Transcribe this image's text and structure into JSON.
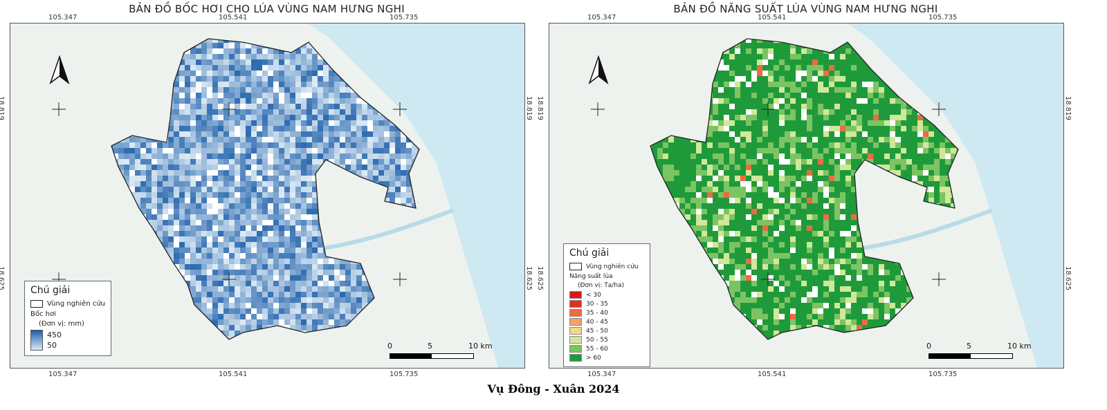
{
  "maps": [
    {
      "title": "BẢN ĐỒ BỐC HƠI CHO LÚA VÙNG NAM HƯNG NGHI",
      "legend": {
        "heading": "Chú giải",
        "study_area": "Vùng nghiên cứu",
        "variable": "Bốc hơi",
        "unit": "(Đơn vị: mm)",
        "max": "450",
        "min": "50",
        "color_max": "#1f5fa8",
        "color_min": "#dbe9f6"
      }
    },
    {
      "title": "BẢN ĐỒ NĂNG SUẤT LÚA VÙNG NAM HƯNG NGHI",
      "legend": {
        "heading": "Chú giải",
        "study_area": "Vùng nghiên cứu",
        "variable": "Năng suất lúa",
        "unit": "(Đơn vị: Tạ/ha)",
        "classes": [
          {
            "label": "<   30",
            "color": "#d7191c"
          },
          {
            "label": "30 - 35",
            "color": "#e0301e"
          },
          {
            "label": "35 - 40",
            "color": "#ee6a43"
          },
          {
            "label": "40 - 45",
            "color": "#f4a261"
          },
          {
            "label": "45 - 50",
            "color": "#f7d48a"
          },
          {
            "label": "50 - 55",
            "color": "#cfe89a"
          },
          {
            "label": "55 - 60",
            "color": "#7cc463"
          },
          {
            "label": "> 60",
            "color": "#1f9a3a"
          }
        ]
      }
    }
  ],
  "coords": {
    "lon": [
      "105.347",
      "105.541",
      "105.735"
    ],
    "lat": [
      "18.819",
      "18.625"
    ]
  },
  "scale": {
    "zero": "0",
    "mid": "5",
    "end": "10 km"
  },
  "caption": "Vụ Đông - Xuân 2024"
}
